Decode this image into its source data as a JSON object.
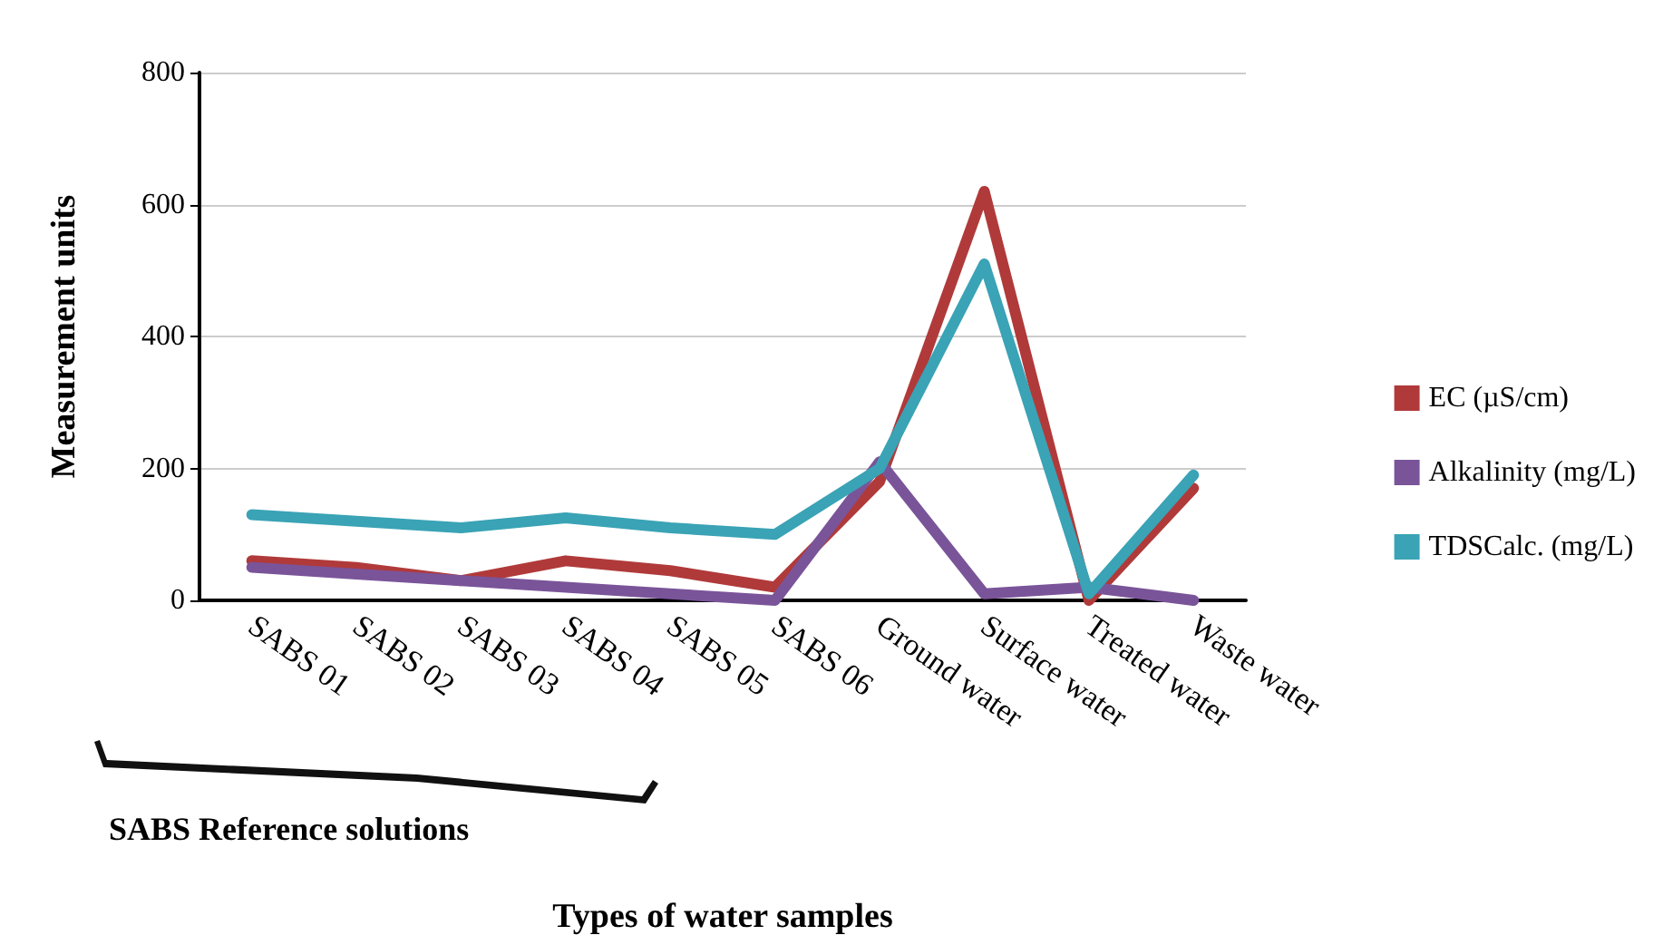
{
  "chart_data": {
    "type": "line",
    "xlabel": "Types of water samples",
    "ylabel": "Measurement units",
    "categories": [
      "SABS 01",
      "SABS 02",
      "SABS 03",
      "SABS 04",
      "SABS 05",
      "SABS 06",
      "Ground water",
      "Surface water",
      "Treated water",
      "Waste water"
    ],
    "series": [
      {
        "name": "EC (µS/cm)",
        "color": "#b03a3a",
        "values": [
          60,
          50,
          30,
          60,
          45,
          20,
          180,
          620,
          0,
          170
        ]
      },
      {
        "name": "Alkalinity (mg/L)",
        "color": "#7a5499",
        "values": [
          50,
          40,
          30,
          20,
          10,
          0,
          210,
          10,
          20,
          0
        ]
      },
      {
        "name": "TDSCalc. (mg/L)",
        "color": "#3aa3b5",
        "values": [
          130,
          120,
          110,
          125,
          110,
          100,
          200,
          510,
          10,
          190
        ]
      }
    ],
    "ylim": [
      0,
      800
    ],
    "yticks": [
      0,
      200,
      400,
      600,
      800
    ],
    "grid": "y",
    "legend": "right",
    "marker": "none",
    "line_style": "solid",
    "annotations": [
      "SABS Reference solutions"
    ]
  }
}
